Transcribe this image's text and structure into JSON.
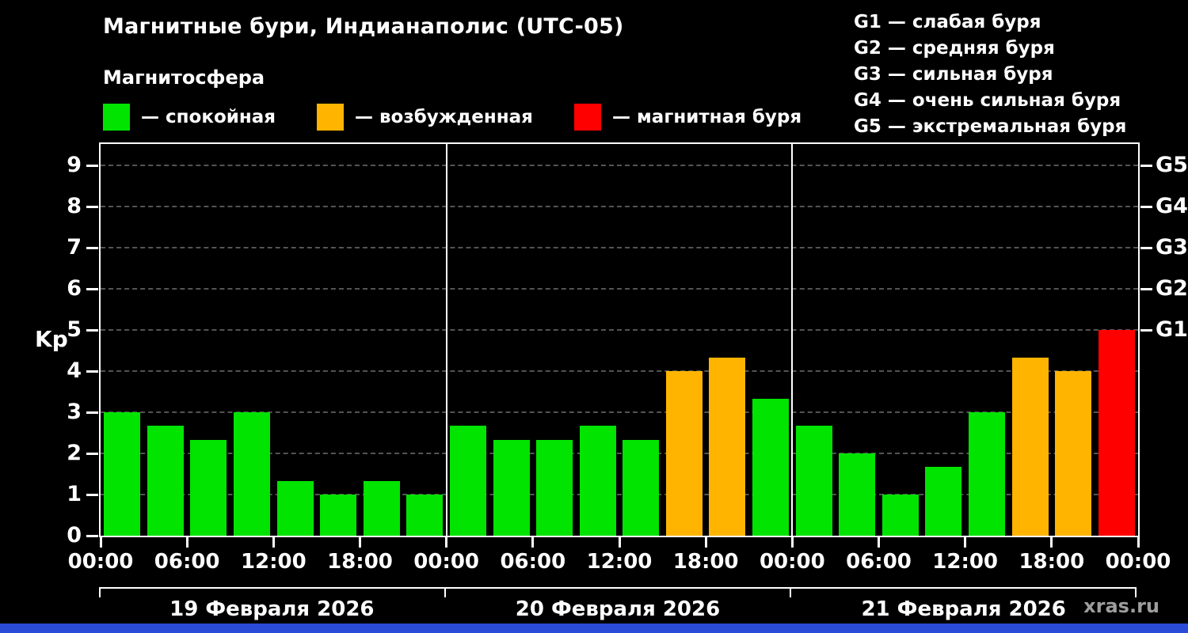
{
  "title": "Магнитные бури, Индианаполис (UTC-05)",
  "subtitle": "Магнитосфера",
  "legend": [
    {
      "label": "— спокойная",
      "status": "calm"
    },
    {
      "label": "— возбужденная",
      "status": "excited"
    },
    {
      "label": "— магнитная буря",
      "status": "storm"
    }
  ],
  "status_colors": {
    "calm": "#00e400",
    "excited": "#ffb400",
    "storm": "#ff0000"
  },
  "g_legend": [
    "G1 — слабая буря",
    "G2 — средняя буря",
    "G3 — сильная буря",
    "G4 — очень сильная буря",
    "G5 — экстремальная буря"
  ],
  "watermark": "xras.ru",
  "footer": {
    "accent_color": "#2a4bd7"
  },
  "chart_data": {
    "type": "bar",
    "title": "Магнитные бури, Индианаполис (UTC-05)",
    "ylabel": "Kp",
    "ylim": [
      0,
      9.5
    ],
    "yticks": [
      0,
      1,
      2,
      3,
      4,
      5,
      6,
      7,
      8,
      9
    ],
    "right_axis": [
      {
        "label": "G1",
        "kp": 5
      },
      {
        "label": "G2",
        "kp": 6
      },
      {
        "label": "G3",
        "kp": 7
      },
      {
        "label": "G4",
        "kp": 8
      },
      {
        "label": "G5",
        "kp": 9
      }
    ],
    "x_tick_labels": [
      "00:00",
      "06:00",
      "12:00",
      "18:00",
      "00:00",
      "06:00",
      "12:00",
      "18:00",
      "00:00",
      "06:00",
      "12:00",
      "18:00",
      "00:00"
    ],
    "day_labels": [
      "19 Февраля 2026",
      "20 Февраля 2026",
      "21 Февраля 2026"
    ],
    "hours_per_bar": 3,
    "grid": "dashed horizontal, vertical white lines at day boundaries",
    "legend_position": "top-left",
    "bars": [
      {
        "kp": 3.0,
        "status": "calm"
      },
      {
        "kp": 2.67,
        "status": "calm"
      },
      {
        "kp": 2.33,
        "status": "calm"
      },
      {
        "kp": 3.0,
        "status": "calm"
      },
      {
        "kp": 1.33,
        "status": "calm"
      },
      {
        "kp": 1.0,
        "status": "calm"
      },
      {
        "kp": 1.33,
        "status": "calm"
      },
      {
        "kp": 1.0,
        "status": "calm"
      },
      {
        "kp": 2.67,
        "status": "calm"
      },
      {
        "kp": 2.33,
        "status": "calm"
      },
      {
        "kp": 2.33,
        "status": "calm"
      },
      {
        "kp": 2.67,
        "status": "calm"
      },
      {
        "kp": 2.33,
        "status": "calm"
      },
      {
        "kp": 4.0,
        "status": "excited"
      },
      {
        "kp": 4.33,
        "status": "excited"
      },
      {
        "kp": 3.33,
        "status": "calm"
      },
      {
        "kp": 2.67,
        "status": "calm"
      },
      {
        "kp": 2.0,
        "status": "calm"
      },
      {
        "kp": 1.0,
        "status": "calm"
      },
      {
        "kp": 1.67,
        "status": "calm"
      },
      {
        "kp": 3.0,
        "status": "calm"
      },
      {
        "kp": 4.33,
        "status": "excited"
      },
      {
        "kp": 4.0,
        "status": "excited"
      },
      {
        "kp": 5.0,
        "status": "storm"
      }
    ]
  }
}
